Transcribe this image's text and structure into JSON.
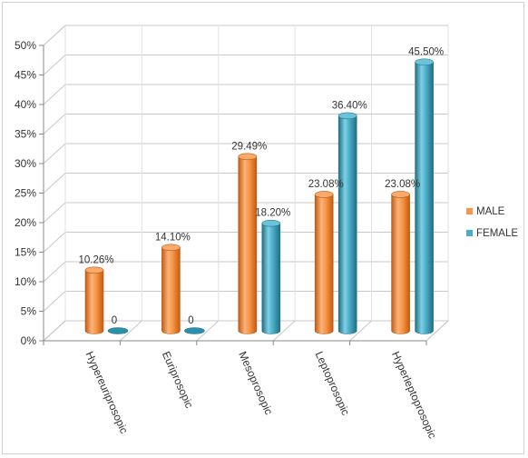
{
  "chart_data": {
    "type": "bar",
    "categories": [
      "Hypereuriprosopic",
      "Euriprosopic",
      "Mesoprosopic",
      "Leptoprosopic",
      "Hyperleptoprosopic"
    ],
    "series": [
      {
        "name": "MALE",
        "values": [
          10.26,
          14.1,
          29.49,
          23.08,
          23.08
        ],
        "labels": [
          "10.26%",
          "14.10%",
          "29.49%",
          "23.08%",
          "23.08%"
        ],
        "color": "#F79646"
      },
      {
        "name": "FEMALE",
        "values": [
          0,
          0,
          18.2,
          36.4,
          45.5
        ],
        "labels": [
          "0",
          "0",
          "18.20%",
          "36.40%",
          "45.50%"
        ],
        "color": "#4BACC6"
      }
    ],
    "yticks": [
      "0%",
      "5%",
      "10%",
      "15%",
      "20%",
      "25%",
      "30%",
      "35%",
      "40%",
      "45%",
      "50%"
    ],
    "ylim": [
      0,
      50
    ],
    "grid": true,
    "legend_position": "right",
    "three_d": true
  }
}
